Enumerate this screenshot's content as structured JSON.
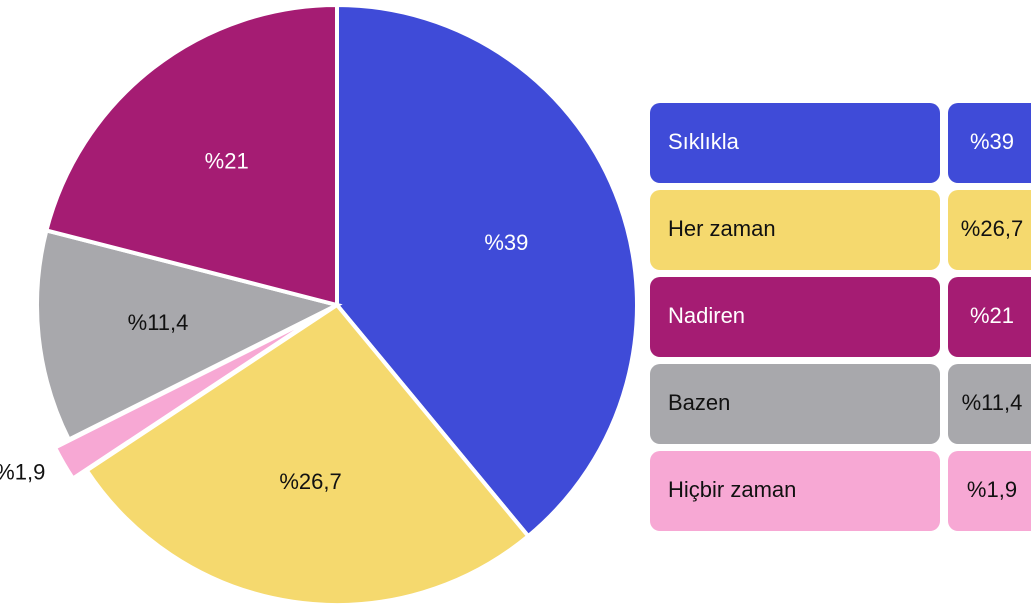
{
  "chart_data": {
    "type": "pie",
    "categories": [
      "Sıklıkla",
      "Her zaman",
      "Hiçbir zaman",
      "Bazen",
      "Nadiren"
    ],
    "values": [
      39,
      26.7,
      1.9,
      11.4,
      21
    ],
    "value_labels": [
      "%39",
      "%26,7",
      "%1,9",
      "%11,4",
      "%21"
    ],
    "colors": [
      "#3f4bd8",
      "#f5d96e",
      "#f7a8d4",
      "#a8a8ac",
      "#a51c73"
    ],
    "legend_order": [
      0,
      1,
      4,
      3,
      2
    ]
  }
}
